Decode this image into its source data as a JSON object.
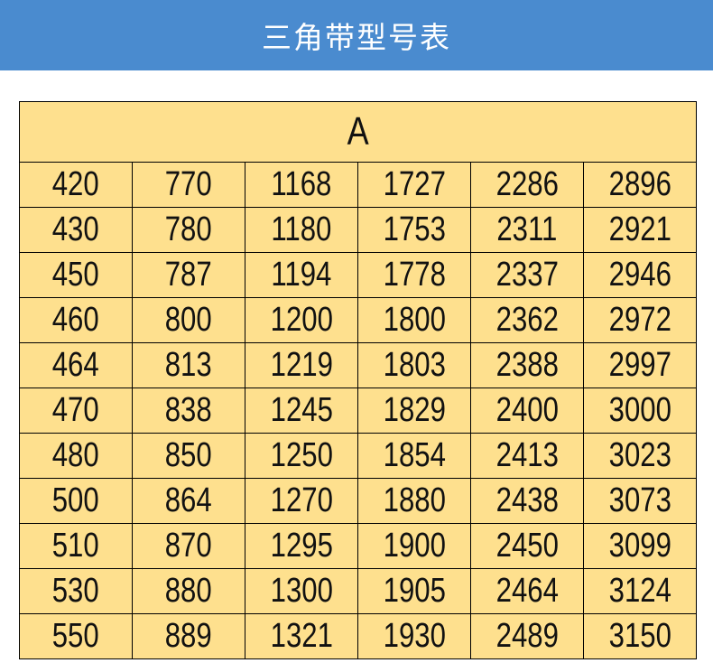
{
  "header": {
    "title": "三角带型号表"
  },
  "table": {
    "group_title": "A",
    "rows": [
      [
        "420",
        "770",
        "1168",
        "1727",
        "2286",
        "2896"
      ],
      [
        "430",
        "780",
        "1180",
        "1753",
        "2311",
        "2921"
      ],
      [
        "450",
        "787",
        "1194",
        "1778",
        "2337",
        "2946"
      ],
      [
        "460",
        "800",
        "1200",
        "1800",
        "2362",
        "2972"
      ],
      [
        "464",
        "813",
        "1219",
        "1803",
        "2388",
        "2997"
      ],
      [
        "470",
        "838",
        "1245",
        "1829",
        "2400",
        "3000"
      ],
      [
        "480",
        "850",
        "1250",
        "1854",
        "2413",
        "3023"
      ],
      [
        "500",
        "864",
        "1270",
        "1880",
        "2438",
        "3073"
      ],
      [
        "510",
        "870",
        "1295",
        "1900",
        "2450",
        "3099"
      ],
      [
        "530",
        "880",
        "1300",
        "1905",
        "2464",
        "3124"
      ],
      [
        "550",
        "889",
        "1321",
        "1930",
        "2489",
        "3150"
      ]
    ]
  },
  "colors": {
    "header_bg": "#4a8bcf",
    "table_bg": "#fee08e"
  }
}
